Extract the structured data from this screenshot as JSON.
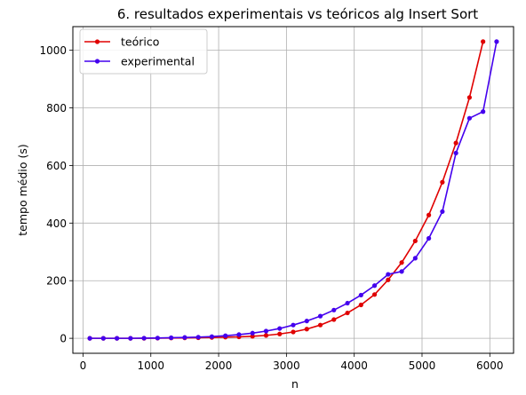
{
  "chart_data": {
    "type": "line",
    "title": "6. resultados experimentais vs teóricos alg Insert Sort",
    "xlabel": "n",
    "ylabel": "tempo médio (s)",
    "xlim": [
      -150,
      6350
    ],
    "ylim": [
      -52,
      1082
    ],
    "xticks": [
      0,
      1000,
      2000,
      3000,
      4000,
      5000,
      6000
    ],
    "yticks": [
      0,
      200,
      400,
      600,
      800,
      1000
    ],
    "grid": true,
    "legend_position": "top-left",
    "series": [
      {
        "name": "teórico",
        "color": "#e00000",
        "x": [
          100,
          300,
          500,
          700,
          900,
          1100,
          1300,
          1500,
          1700,
          1900,
          2100,
          2300,
          2500,
          2700,
          2900,
          3100,
          3300,
          3500,
          3700,
          3900,
          4100,
          4300,
          4500,
          4700,
          4900,
          5100,
          5300,
          5500,
          5700,
          5900
        ],
        "y": [
          0,
          0,
          0,
          0,
          0,
          0.5,
          1,
          1.5,
          2,
          3,
          4,
          5,
          7,
          10,
          15,
          22,
          32,
          46,
          65,
          88,
          116,
          152,
          203,
          263,
          338,
          428,
          542,
          678,
          836,
          1030
        ]
      },
      {
        "name": "experimental",
        "color": "#4400ee",
        "x": [
          100,
          300,
          500,
          700,
          900,
          1100,
          1300,
          1500,
          1700,
          1900,
          2100,
          2300,
          2500,
          2700,
          2900,
          3100,
          3300,
          3500,
          3700,
          3900,
          4100,
          4300,
          4500,
          4700,
          4900,
          5100,
          5300,
          5500,
          5700,
          5900,
          6100
        ],
        "y": [
          0,
          0,
          0,
          0,
          0.5,
          1,
          2,
          3,
          4,
          6,
          9,
          13,
          18,
          25,
          34,
          46,
          60,
          77,
          98,
          122,
          150,
          183,
          222,
          232,
          278,
          347,
          440,
          643,
          764,
          787,
          1030
        ]
      }
    ]
  }
}
